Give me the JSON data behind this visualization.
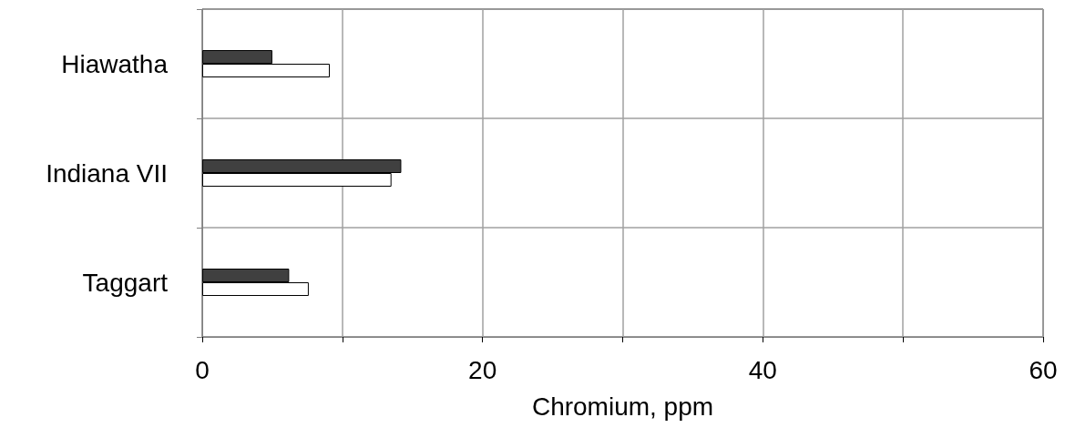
{
  "chart_data": {
    "type": "bar",
    "orientation": "horizontal",
    "xlabel": "Chromium, ppm",
    "categories": [
      "Hiawatha",
      "Indiana VII",
      "Taggart"
    ],
    "series": [
      {
        "color": "#404040",
        "values": [
          5.0,
          14.2,
          6.2
        ]
      },
      {
        "color": "#ffffff",
        "values": [
          9.1,
          13.5,
          7.6
        ]
      }
    ],
    "xlim": [
      0,
      60
    ],
    "xticks": [
      0,
      {
        "value": 10,
        "label": null
      },
      20,
      {
        "value": 30,
        "label": null
      },
      40,
      {
        "value": 50,
        "label": null
      },
      60
    ],
    "grid": true
  }
}
